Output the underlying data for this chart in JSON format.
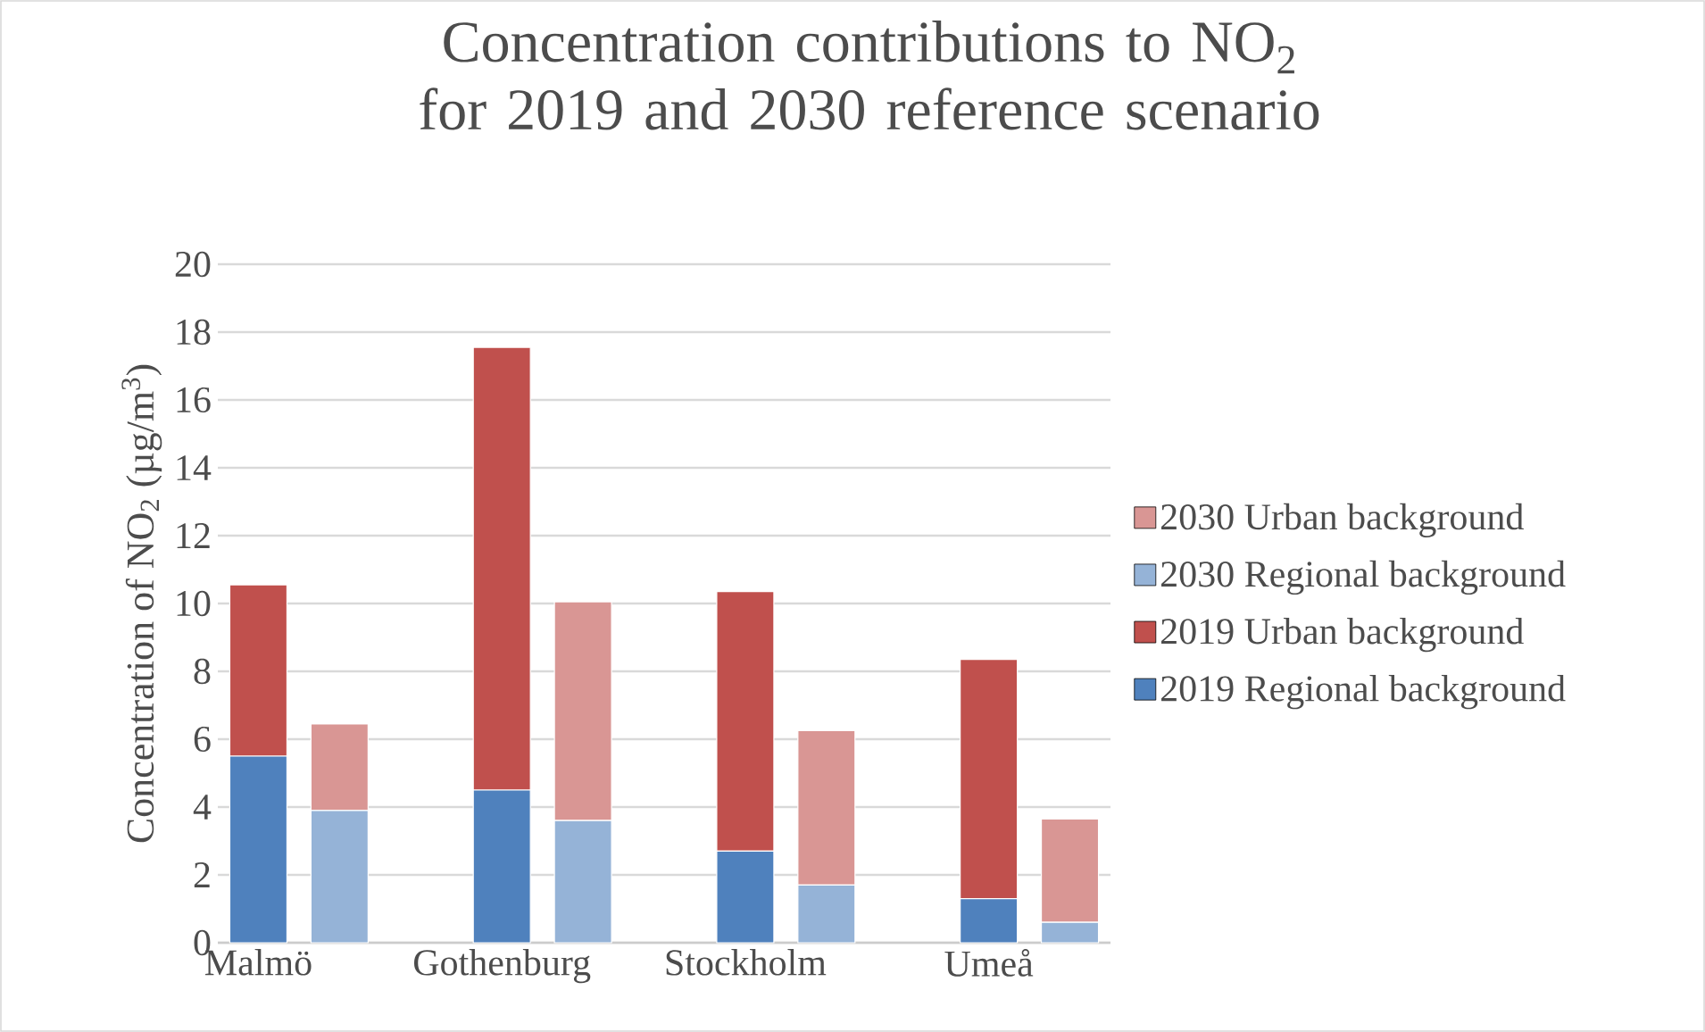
{
  "chart_data": {
    "type": "bar",
    "title": "Concentration contributions to NO$_{2}$ for 2019 and 2030 reference scenario",
    "ylabel": "Concentration of NO$_{2}$ (µg/m$^{3}$)",
    "categories": [
      "Malmö",
      null,
      null,
      "Gothenburg",
      null,
      null,
      "Stockholm",
      null,
      null,
      "Umeå",
      null
    ],
    "stacked": true,
    "series": [
      {
        "name": "2019 Regional background",
        "color": "#4f81bd",
        "values": [
          5.5,
          null,
          null,
          4.5,
          null,
          null,
          2.7,
          null,
          null,
          1.3,
          null
        ]
      },
      {
        "name": "2019 Urban background",
        "color": "#c0504d",
        "values": [
          5.05,
          null,
          null,
          13.05,
          null,
          null,
          7.65,
          null,
          null,
          7.05,
          null
        ]
      },
      {
        "name": "2030 Regional background",
        "color": "#95b3d7",
        "values": [
          null,
          3.9,
          null,
          null,
          3.6,
          null,
          null,
          1.7,
          null,
          null,
          0.6
        ]
      },
      {
        "name": "2030 Urban background",
        "color": "#d99694",
        "values": [
          null,
          2.55,
          null,
          null,
          6.45,
          null,
          null,
          4.55,
          null,
          null,
          3.05
        ]
      }
    ],
    "ylim": [
      0,
      20
    ],
    "yticks": [
      0,
      2,
      4,
      6,
      8,
      10,
      12,
      14,
      16,
      18,
      20
    ],
    "grid": "y",
    "legend": "right"
  }
}
